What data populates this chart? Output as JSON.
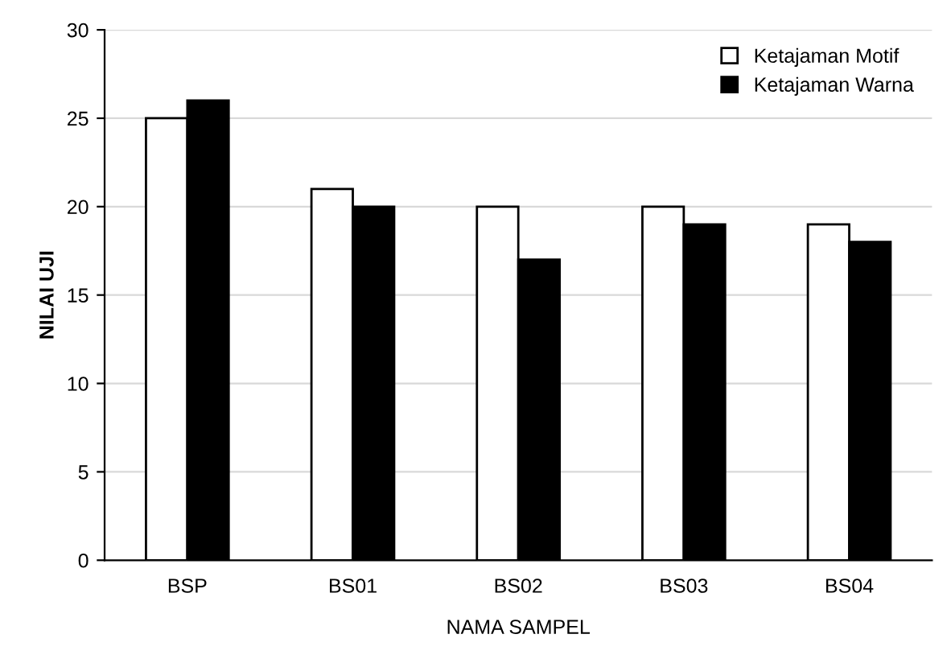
{
  "chart_data": {
    "type": "bar",
    "xlabel": "NAMA SAMPEL",
    "ylabel": "NILAI UJI",
    "categories": [
      "BSP",
      "BS01",
      "BS02",
      "BS03",
      "BS04"
    ],
    "series": [
      {
        "name": "Ketajaman Motif",
        "color": "#ffffff",
        "values": [
          25,
          21,
          20,
          20,
          19
        ]
      },
      {
        "name": "Ketajaman Warna",
        "color": "#000000",
        "values": [
          26,
          20,
          17,
          19,
          18
        ]
      }
    ],
    "ylim": [
      0,
      30
    ],
    "yticks": [
      0,
      5,
      10,
      15,
      20,
      25,
      30
    ],
    "grid": "y",
    "legend": "top right"
  }
}
